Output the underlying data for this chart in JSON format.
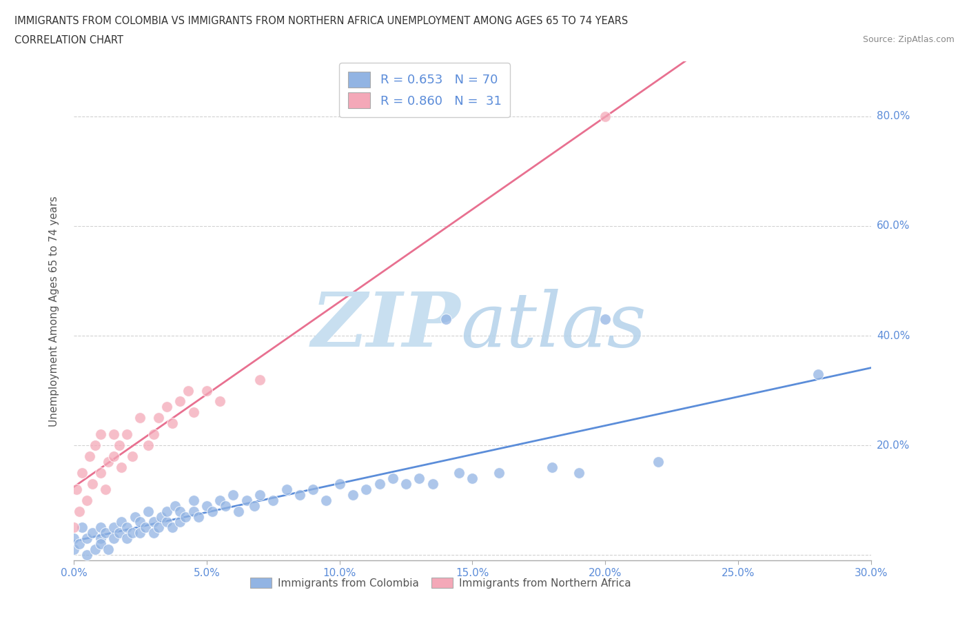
{
  "title_line1": "IMMIGRANTS FROM COLOMBIA VS IMMIGRANTS FROM NORTHERN AFRICA UNEMPLOYMENT AMONG AGES 65 TO 74 YEARS",
  "title_line2": "CORRELATION CHART",
  "source": "Source: ZipAtlas.com",
  "ylabel": "Unemployment Among Ages 65 to 74 years",
  "legend_colombia": "R = 0.653   N = 70",
  "legend_n_africa": "R = 0.860   N =  31",
  "color_colombia": "#92b4e3",
  "color_n_africa": "#f4a8b8",
  "line_colombia": "#5b8dd9",
  "line_n_africa": "#e87090",
  "watermark_zip_color": "#c8dff0",
  "watermark_atlas_color": "#b8d4eb",
  "xlim": [
    0.0,
    0.3
  ],
  "ylim": [
    -0.01,
    0.9
  ],
  "yticks": [
    0.0,
    0.2,
    0.4,
    0.6,
    0.8
  ],
  "ytick_labels": [
    "",
    "20.0%",
    "40.0%",
    "60.0%",
    "80.0%"
  ],
  "xticks": [
    0.0,
    0.05,
    0.1,
    0.15,
    0.2,
    0.25,
    0.3
  ],
  "xtick_labels": [
    "0.0%",
    "5.0%",
    "10.0%",
    "15.0%",
    "20.0%",
    "25.0%",
    "30.0%"
  ],
  "colombia_scatter_x": [
    0.0,
    0.0,
    0.002,
    0.003,
    0.005,
    0.005,
    0.007,
    0.008,
    0.01,
    0.01,
    0.01,
    0.012,
    0.013,
    0.015,
    0.015,
    0.017,
    0.018,
    0.02,
    0.02,
    0.022,
    0.023,
    0.025,
    0.025,
    0.027,
    0.028,
    0.03,
    0.03,
    0.032,
    0.033,
    0.035,
    0.035,
    0.037,
    0.038,
    0.04,
    0.04,
    0.042,
    0.045,
    0.045,
    0.047,
    0.05,
    0.052,
    0.055,
    0.057,
    0.06,
    0.062,
    0.065,
    0.068,
    0.07,
    0.075,
    0.08,
    0.085,
    0.09,
    0.095,
    0.1,
    0.105,
    0.11,
    0.115,
    0.12,
    0.125,
    0.13,
    0.135,
    0.14,
    0.145,
    0.15,
    0.16,
    0.18,
    0.19,
    0.2,
    0.22,
    0.28
  ],
  "colombia_scatter_y": [
    0.01,
    0.03,
    0.02,
    0.05,
    0.0,
    0.03,
    0.04,
    0.01,
    0.03,
    0.05,
    0.02,
    0.04,
    0.01,
    0.05,
    0.03,
    0.04,
    0.06,
    0.03,
    0.05,
    0.04,
    0.07,
    0.04,
    0.06,
    0.05,
    0.08,
    0.04,
    0.06,
    0.05,
    0.07,
    0.06,
    0.08,
    0.05,
    0.09,
    0.06,
    0.08,
    0.07,
    0.08,
    0.1,
    0.07,
    0.09,
    0.08,
    0.1,
    0.09,
    0.11,
    0.08,
    0.1,
    0.09,
    0.11,
    0.1,
    0.12,
    0.11,
    0.12,
    0.1,
    0.13,
    0.11,
    0.12,
    0.13,
    0.14,
    0.13,
    0.14,
    0.13,
    0.43,
    0.15,
    0.14,
    0.15,
    0.16,
    0.15,
    0.43,
    0.17,
    0.33
  ],
  "n_africa_scatter_x": [
    0.0,
    0.001,
    0.002,
    0.003,
    0.005,
    0.006,
    0.007,
    0.008,
    0.01,
    0.01,
    0.012,
    0.013,
    0.015,
    0.015,
    0.017,
    0.018,
    0.02,
    0.022,
    0.025,
    0.028,
    0.03,
    0.032,
    0.035,
    0.037,
    0.04,
    0.043,
    0.045,
    0.05,
    0.055,
    0.07,
    0.2
  ],
  "n_africa_scatter_y": [
    0.05,
    0.12,
    0.08,
    0.15,
    0.1,
    0.18,
    0.13,
    0.2,
    0.15,
    0.22,
    0.12,
    0.17,
    0.18,
    0.22,
    0.2,
    0.16,
    0.22,
    0.18,
    0.25,
    0.2,
    0.22,
    0.25,
    0.27,
    0.24,
    0.28,
    0.3,
    0.26,
    0.3,
    0.28,
    0.32,
    0.8
  ],
  "bottom_legend_labels": [
    "Immigrants from Colombia",
    "Immigrants from Northern Africa"
  ]
}
